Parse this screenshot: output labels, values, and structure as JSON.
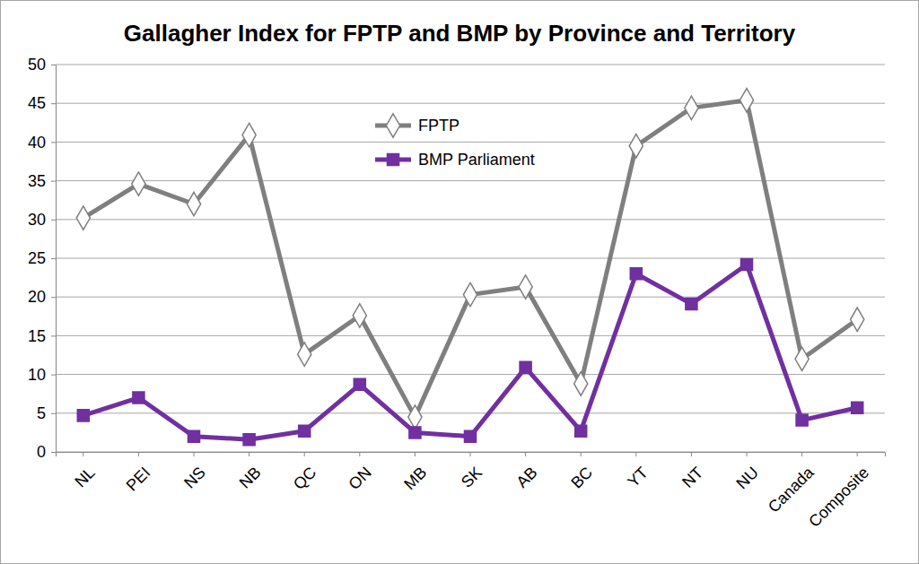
{
  "chart_data": {
    "type": "line",
    "title": "Gallagher Index for FPTP and BMP by Province and Territory",
    "categories": [
      "NL",
      "PEI",
      "NS",
      "NB",
      "QC",
      "ON",
      "MB",
      "SK",
      "AB",
      "BC",
      "YT",
      "NT",
      "NU",
      "Canada",
      "Composite"
    ],
    "series": [
      {
        "name": "FPTP",
        "color": "#7f7f7f",
        "marker": "open-diamond",
        "values": [
          30.2,
          34.6,
          32.0,
          40.9,
          12.6,
          17.6,
          4.5,
          20.3,
          21.3,
          8.8,
          39.5,
          44.4,
          45.4,
          12.0,
          17.1
        ]
      },
      {
        "name": "BMP Parliament",
        "color": "#7030a0",
        "marker": "square",
        "values": [
          4.7,
          7.0,
          2.0,
          1.6,
          2.7,
          8.7,
          2.5,
          2.0,
          10.9,
          2.7,
          23.0,
          19.1,
          24.2,
          4.1,
          5.7
        ]
      }
    ],
    "ylim": [
      0,
      50
    ],
    "yticks": [
      0,
      5,
      10,
      15,
      20,
      25,
      30,
      35,
      40,
      45,
      50
    ],
    "grid": true,
    "legend": "top"
  }
}
